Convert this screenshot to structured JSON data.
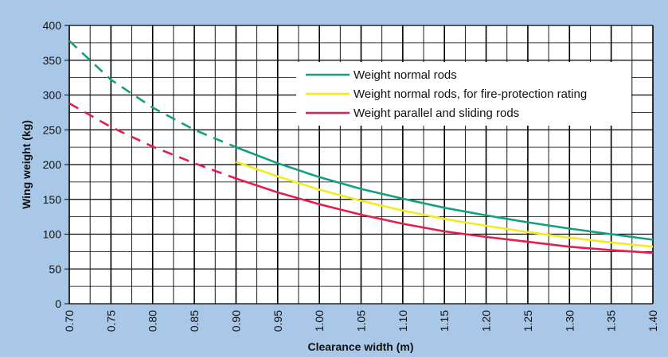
{
  "chart_data": {
    "type": "line",
    "xlabel": "Clearance width (m)",
    "ylabel": "Wing weight (kg)",
    "xlim": [
      0.7,
      1.4
    ],
    "ylim": [
      0,
      400
    ],
    "x_ticks": [
      "0.70",
      "0.75",
      "0.80",
      "0.85",
      "0.90",
      "0.95",
      "1.00",
      "1.05",
      "1.10",
      "1.15",
      "1.20",
      "1.25",
      "1.30",
      "1.35",
      "1.40"
    ],
    "y_ticks": [
      "0",
      "50",
      "100",
      "150",
      "200",
      "250",
      "300",
      "350",
      "400"
    ],
    "grid": true,
    "legend_position": "top-right",
    "series": [
      {
        "name": "Weight normal rods",
        "color": "#12a07f",
        "dashed_until_x": 0.9,
        "points": [
          [
            0.7,
            378
          ],
          [
            0.75,
            322
          ],
          [
            0.8,
            282
          ],
          [
            0.85,
            250
          ],
          [
            0.9,
            225
          ],
          [
            0.95,
            202
          ],
          [
            1.0,
            182
          ],
          [
            1.05,
            165
          ],
          [
            1.1,
            151
          ],
          [
            1.15,
            138
          ],
          [
            1.2,
            127
          ],
          [
            1.25,
            117
          ],
          [
            1.3,
            108
          ],
          [
            1.35,
            100
          ],
          [
            1.4,
            92
          ]
        ]
      },
      {
        "name": "Weight normal rods, for fire-protection rating",
        "color": "#f0ec22",
        "dashed_until_x": 0.9,
        "points": [
          [
            0.9,
            204
          ],
          [
            0.95,
            183
          ],
          [
            1.0,
            164
          ],
          [
            1.05,
            148
          ],
          [
            1.1,
            134
          ],
          [
            1.15,
            122
          ],
          [
            1.2,
            112
          ],
          [
            1.25,
            103
          ],
          [
            1.3,
            95
          ],
          [
            1.35,
            88
          ],
          [
            1.4,
            82
          ]
        ]
      },
      {
        "name": "Weight parallel and sliding rods",
        "color": "#e21f4e",
        "dashed_until_x": 0.9,
        "points": [
          [
            0.7,
            288
          ],
          [
            0.75,
            254
          ],
          [
            0.8,
            226
          ],
          [
            0.85,
            202
          ],
          [
            0.9,
            180
          ],
          [
            0.95,
            160
          ],
          [
            1.0,
            143
          ],
          [
            1.05,
            128
          ],
          [
            1.1,
            115
          ],
          [
            1.15,
            104
          ],
          [
            1.2,
            96
          ],
          [
            1.25,
            89
          ],
          [
            1.3,
            82
          ],
          [
            1.35,
            77
          ],
          [
            1.4,
            73
          ]
        ]
      }
    ]
  }
}
